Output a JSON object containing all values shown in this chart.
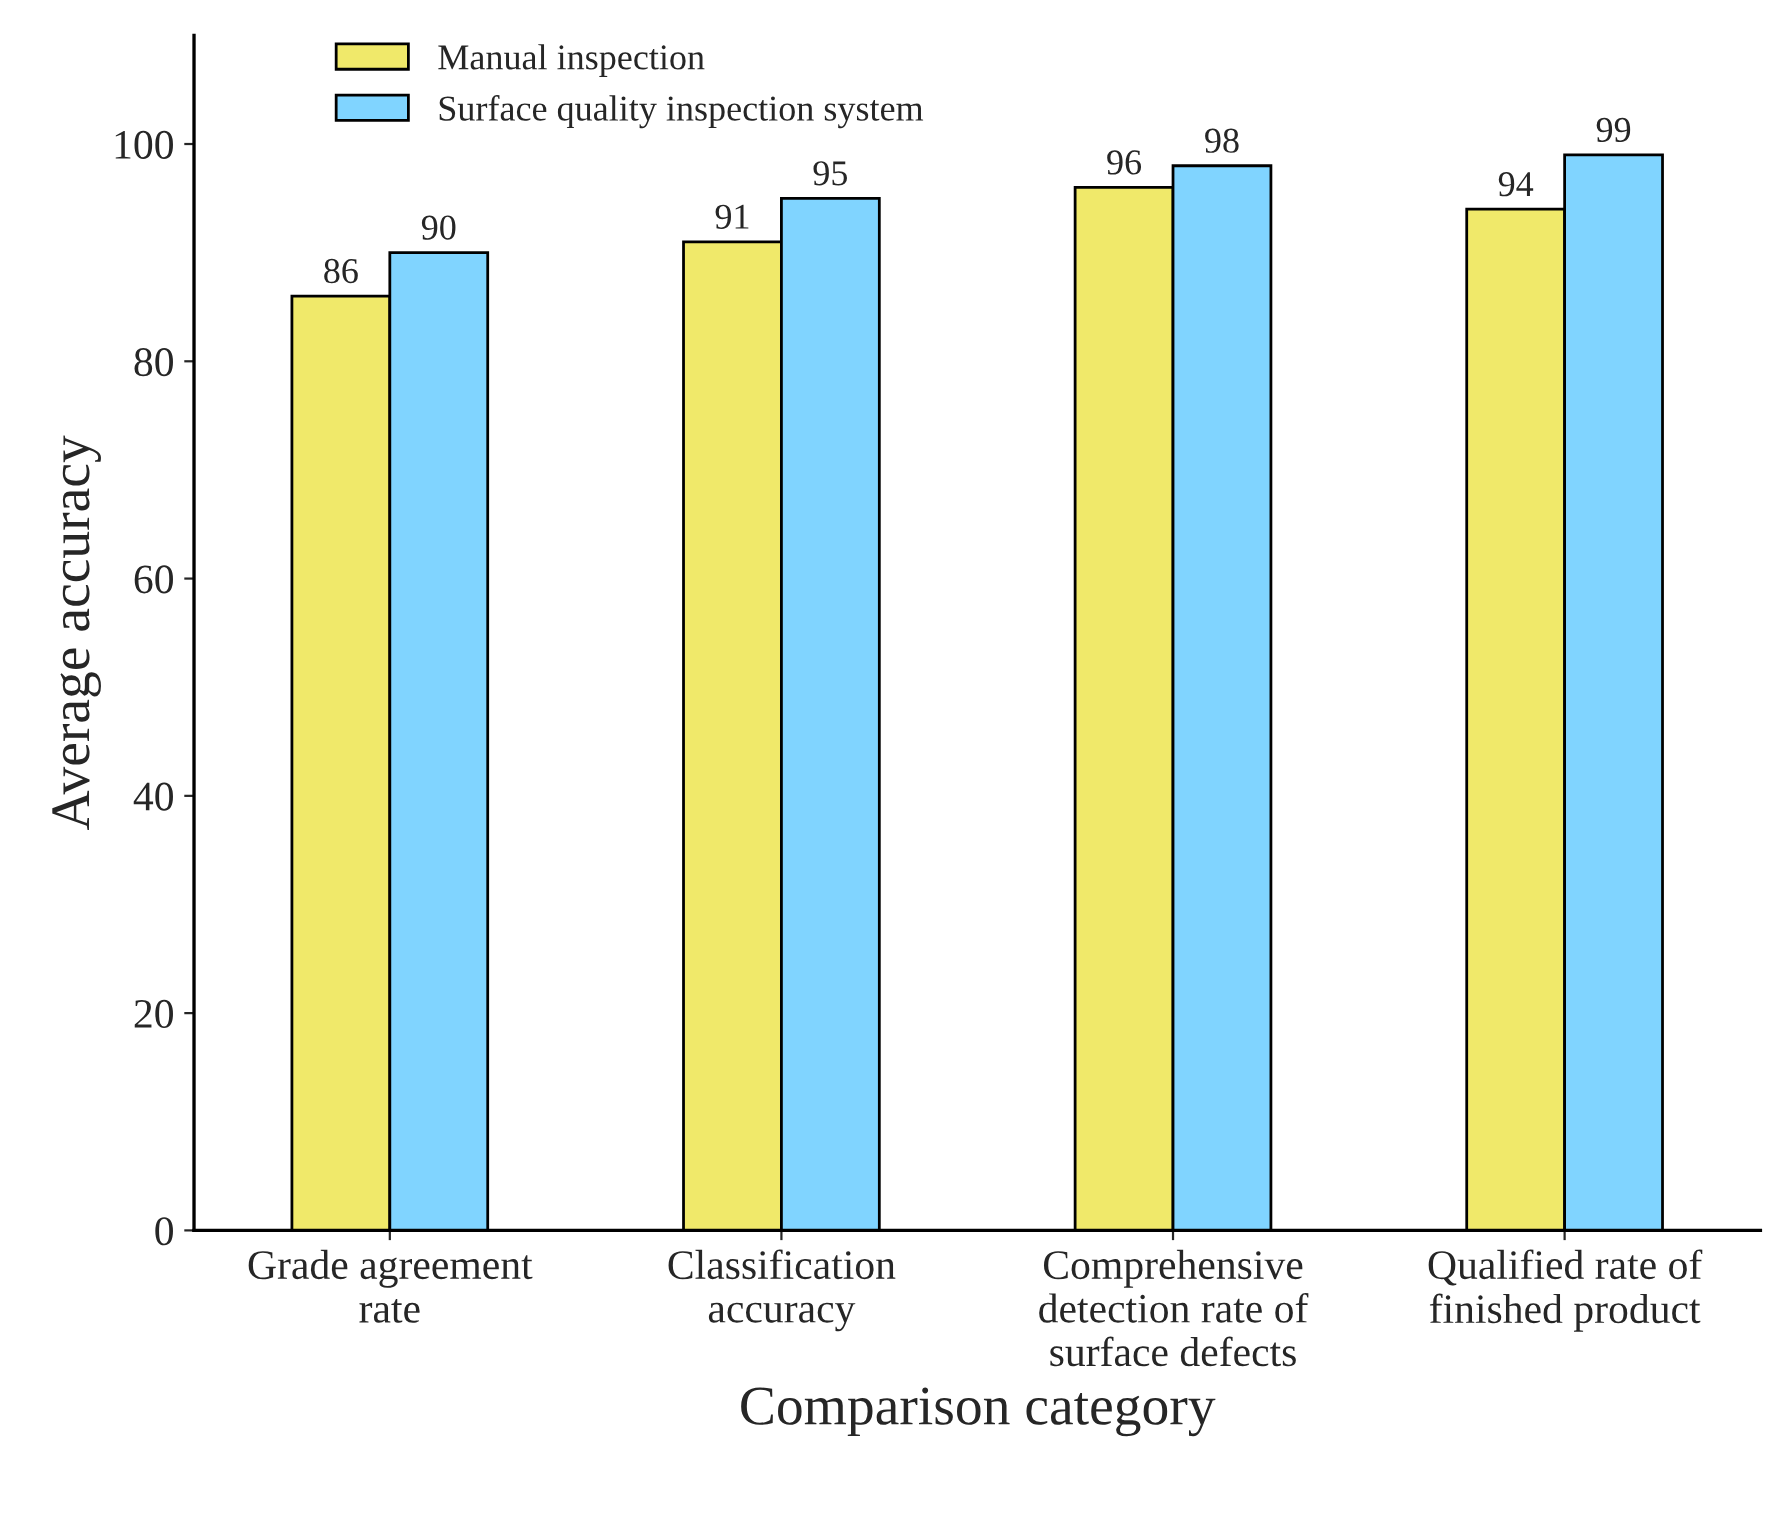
{
  "chart_data": {
    "type": "bar",
    "xlabel": "Comparison category",
    "ylabel": "Average accuracy",
    "categories": [
      "Grade agreement\nrate",
      "Classification\naccuracy",
      "Comprehensive\ndetection rate of\nsurface defects",
      "Qualified rate of\nfinished product"
    ],
    "series": [
      {
        "name": "Manual inspection",
        "color": "#f0e96a",
        "values": [
          86,
          91,
          96,
          94
        ]
      },
      {
        "name": "Surface quality inspection system",
        "color": "#80d4ff",
        "values": [
          90,
          95,
          98,
          99
        ]
      }
    ],
    "ylim": [
      0,
      110
    ],
    "yticks": [
      0,
      20,
      40,
      60,
      80,
      100
    ],
    "data_labels": true,
    "legend": "top left",
    "grid": false
  }
}
